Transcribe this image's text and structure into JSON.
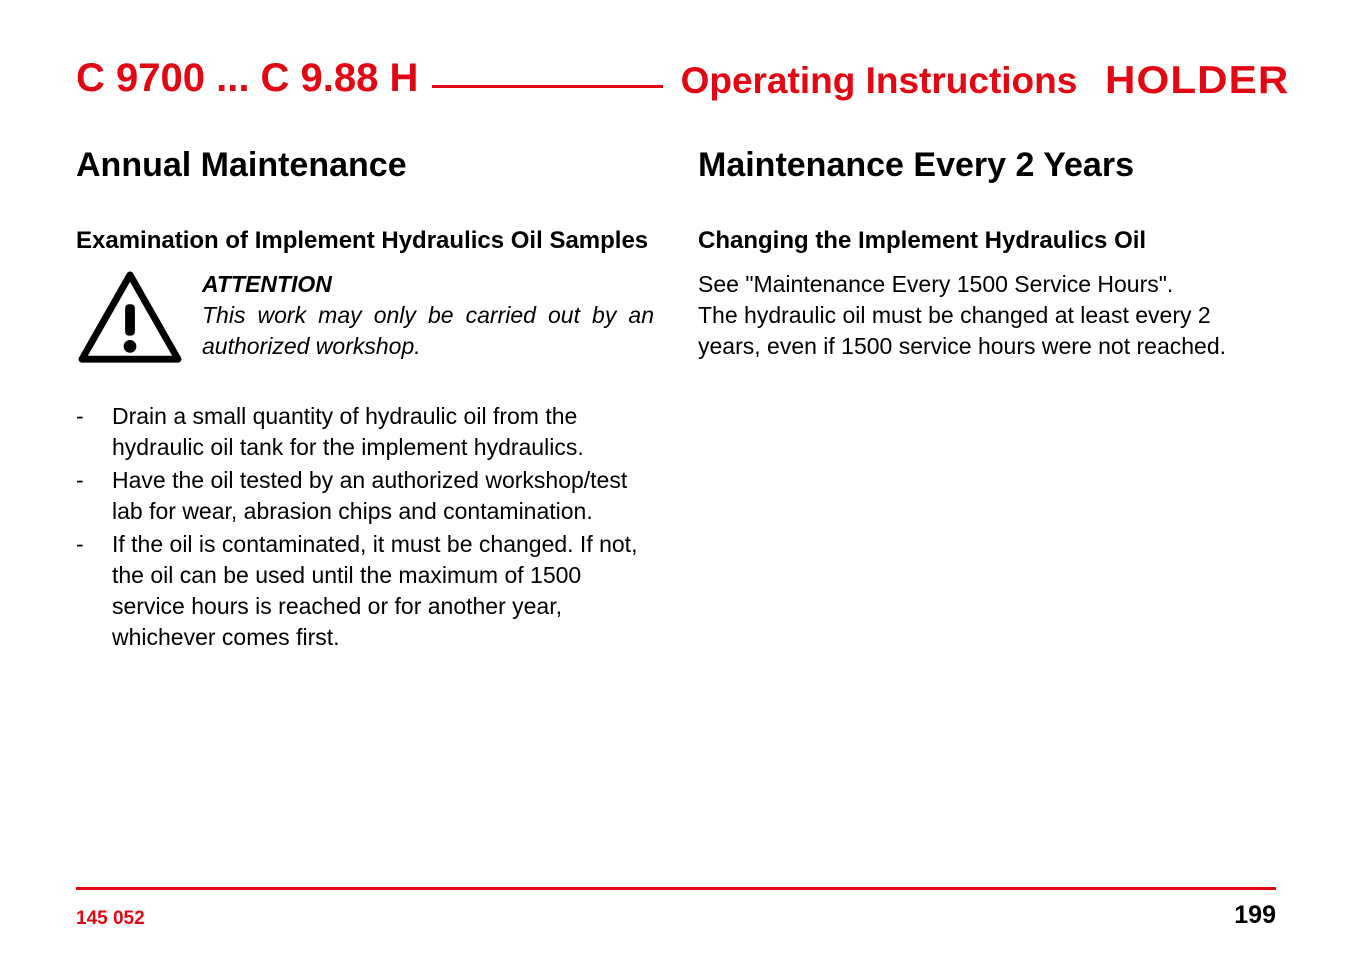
{
  "colors": {
    "accent": "#e30613",
    "text": "#000000",
    "background": "#ffffff",
    "rule": "#e30613"
  },
  "typography": {
    "family": "Arial, Helvetica, sans-serif",
    "h1_pt": 34,
    "h2_pt": 24,
    "body_pt": 23,
    "header_model_pt": 40,
    "header_oi_pt": 37,
    "brand_pt": 39,
    "docid_pt": 19,
    "pagenum_pt": 25
  },
  "header": {
    "model": "C 9700 ... C 9.88 H",
    "title": "Operating Instructions",
    "brand": "HOLDER"
  },
  "left": {
    "h1": "Annual Maintenance",
    "h2": "Examination of Implement Hydraulics Oil Samples",
    "attention_head": "ATTENTION",
    "attention_body": "This work may only be carried out by an authorized workshop.",
    "bullets": [
      "Drain a small quantity of hydraulic oil from the hydraulic oil tank for the implement hydraulics.",
      "Have the oil tested by an authorized workshop/test lab for wear, abrasion chips and contamination.",
      "If the oil is contaminated, it must be changed. If not, the oil can be used until the maximum of 1500 service hours is reached or for another year, whichever comes first."
    ]
  },
  "right": {
    "h1": "Maintenance Every 2 Years",
    "h2": "Changing the Implement Hydraulics Oil",
    "para": "See \"Maintenance Every 1500 Service Hours\".\nThe hydraulic oil must be changed at least every 2 years, even if 1500 service hours were not reached."
  },
  "footer": {
    "doc_id": "145 052",
    "page_num": "199"
  },
  "icon": {
    "name": "warning-triangle",
    "stroke": "#000000",
    "stroke_width": 7,
    "corner_radius": 12
  }
}
